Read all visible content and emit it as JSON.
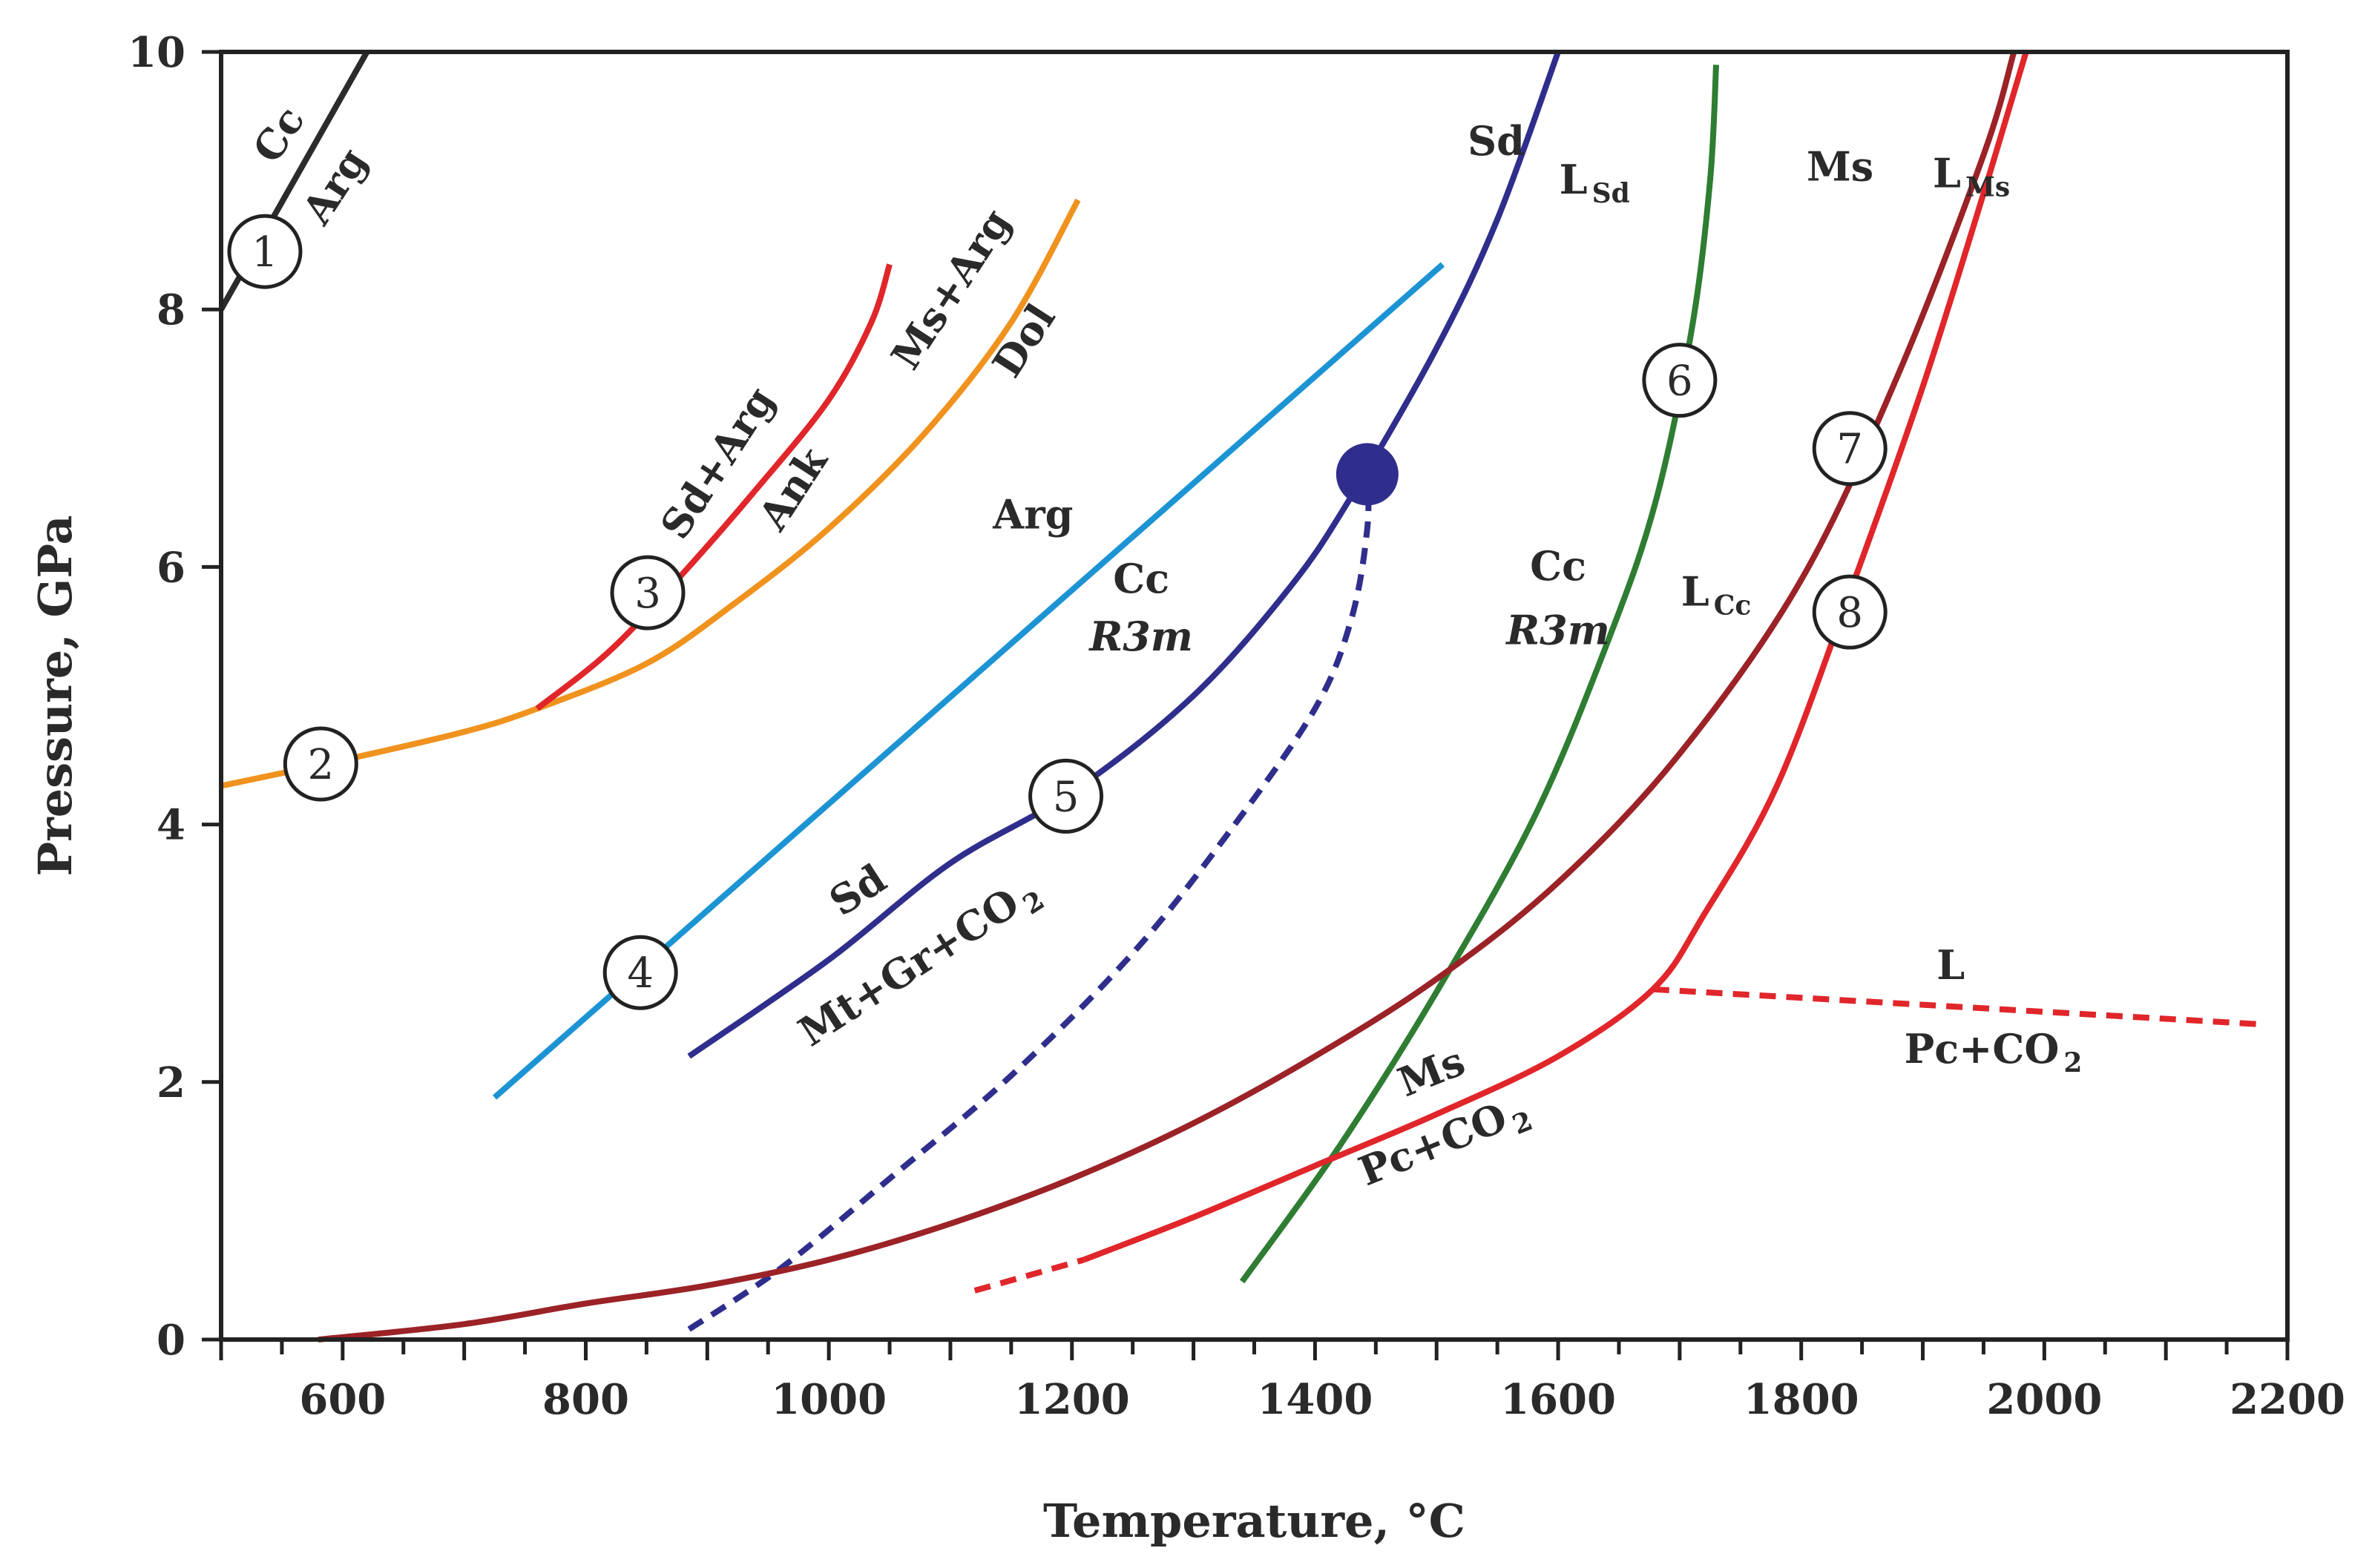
{
  "chart_data": {
    "type": "line",
    "title": "",
    "xlabel": "Temperature, °C",
    "ylabel": "Pressure, GPa",
    "xlim": [
      500,
      2200
    ],
    "ylim": [
      0,
      10
    ],
    "xticks": [
      600,
      800,
      1000,
      1200,
      1400,
      1600,
      1800,
      2000,
      2200
    ],
    "yticks": [
      0,
      2,
      4,
      6,
      8,
      10
    ],
    "minor_xtick_step": 50,
    "grid": false,
    "series": [
      {
        "id": "c1",
        "name": "Cc / Arg",
        "color": "#2b2b2b",
        "dashed": false,
        "points": [
          [
            500,
            8.0
          ],
          [
            620,
            10.0
          ]
        ]
      },
      {
        "id": "c2",
        "name": "Ms+Arg / Dol",
        "color": "#f0921e",
        "dashed": false,
        "points": [
          [
            500,
            4.3
          ],
          [
            600,
            4.5
          ],
          [
            700,
            4.72
          ],
          [
            760,
            4.9
          ],
          [
            850,
            5.25
          ],
          [
            920,
            5.7
          ],
          [
            1000,
            6.3
          ],
          [
            1080,
            7.05
          ],
          [
            1150,
            7.9
          ],
          [
            1205,
            8.85
          ]
        ]
      },
      {
        "id": "c3",
        "name": "Sd+Arg / Ank",
        "color": "#e0262a",
        "dashed": false,
        "points": [
          [
            760,
            4.9
          ],
          [
            820,
            5.35
          ],
          [
            880,
            5.95
          ],
          [
            940,
            6.6
          ],
          [
            1000,
            7.3
          ],
          [
            1035,
            7.9
          ],
          [
            1050,
            8.35
          ]
        ]
      },
      {
        "id": "c4",
        "name": "Arg / Cc R3m",
        "color": "#1c94d4",
        "dashed": false,
        "points": [
          [
            725,
            1.88
          ],
          [
            1505,
            8.35
          ]
        ]
      },
      {
        "id": "c5",
        "name": "Sd / Mt+Gr+CO2",
        "color": "#2f2e8c",
        "dashed": false,
        "points": [
          [
            885,
            2.2
          ],
          [
            1000,
            2.95
          ],
          [
            1100,
            3.7
          ],
          [
            1200,
            4.25
          ],
          [
            1300,
            5.0
          ],
          [
            1380,
            5.85
          ],
          [
            1430,
            6.55
          ],
          [
            1500,
            7.7
          ],
          [
            1550,
            8.7
          ],
          [
            1600,
            10.0
          ]
        ]
      },
      {
        "id": "c5b",
        "name": "Sd metastable",
        "color": "#2f2e8c",
        "dashed": true,
        "points": [
          [
            885,
            0.08
          ],
          [
            960,
            0.55
          ],
          [
            1050,
            1.25
          ],
          [
            1150,
            2.05
          ],
          [
            1250,
            3.0
          ],
          [
            1330,
            3.95
          ],
          [
            1400,
            4.9
          ],
          [
            1430,
            5.6
          ],
          [
            1443,
            6.3
          ],
          [
            1443,
            6.75
          ]
        ]
      },
      {
        "id": "c6",
        "name": "Cc R3m / L Cc",
        "color": "#2e7d32",
        "dashed": false,
        "points": [
          [
            1340,
            0.45
          ],
          [
            1420,
            1.5
          ],
          [
            1500,
            2.7
          ],
          [
            1580,
            4.05
          ],
          [
            1640,
            5.4
          ],
          [
            1680,
            6.5
          ],
          [
            1710,
            7.85
          ],
          [
            1725,
            9.0
          ],
          [
            1730,
            9.9
          ]
        ]
      },
      {
        "id": "c7",
        "name": "Ms / L Ms",
        "color": "#9b2226",
        "dashed": false,
        "points": [
          [
            580,
            0.0
          ],
          [
            700,
            0.12
          ],
          [
            800,
            0.28
          ],
          [
            900,
            0.42
          ],
          [
            1000,
            0.62
          ],
          [
            1100,
            0.9
          ],
          [
            1200,
            1.25
          ],
          [
            1300,
            1.68
          ],
          [
            1400,
            2.2
          ],
          [
            1500,
            2.8
          ],
          [
            1600,
            3.55
          ],
          [
            1700,
            4.55
          ],
          [
            1800,
            5.9
          ],
          [
            1880,
            7.5
          ],
          [
            1950,
            9.2
          ],
          [
            1975,
            10.0
          ]
        ]
      },
      {
        "id": "c8a",
        "name": "Ms / Pc+CO2 (dashed)",
        "color": "#e0262a",
        "dashed": true,
        "points": [
          [
            1120,
            0.38
          ],
          [
            1210,
            0.62
          ]
        ]
      },
      {
        "id": "c8",
        "name": "Ms / Pc+CO2",
        "color": "#e0262a",
        "dashed": false,
        "points": [
          [
            1210,
            0.62
          ],
          [
            1300,
            0.95
          ],
          [
            1400,
            1.35
          ],
          [
            1500,
            1.75
          ],
          [
            1600,
            2.2
          ],
          [
            1678,
            2.72
          ],
          [
            1720,
            3.3
          ],
          [
            1780,
            4.3
          ],
          [
            1840,
            5.8
          ],
          [
            1900,
            7.4
          ],
          [
            1950,
            8.9
          ],
          [
            1985,
            10.0
          ]
        ]
      },
      {
        "id": "c9",
        "name": "L / Pc+CO2",
        "color": "#e0262a",
        "dashed": true,
        "points": [
          [
            1678,
            2.72
          ],
          [
            1900,
            2.6
          ],
          [
            2175,
            2.45
          ]
        ]
      }
    ],
    "invariant_point": {
      "x": 1443,
      "y": 6.72,
      "color": "#2f2e8c"
    },
    "markers": [
      {
        "label": "1",
        "x": 536,
        "y": 8.45
      },
      {
        "label": "2",
        "x": 582,
        "y": 4.47
      },
      {
        "label": "3",
        "x": 851,
        "y": 5.8
      },
      {
        "label": "4",
        "x": 845,
        "y": 2.85
      },
      {
        "label": "5",
        "x": 1195,
        "y": 4.22
      },
      {
        "label": "6",
        "x": 1700,
        "y": 7.45
      },
      {
        "label": "7",
        "x": 1840,
        "y": 6.92
      },
      {
        "label": "8",
        "x": 1840,
        "y": 5.65
      }
    ],
    "annotations": [
      {
        "id": "cc1",
        "text": "Cc",
        "x": 557,
        "y": 9.3,
        "rotate": -57
      },
      {
        "id": "arg1",
        "text": "Arg",
        "x": 603,
        "y": 8.9,
        "rotate": -57
      },
      {
        "id": "sdarg",
        "text": "Sd+Arg",
        "x": 918,
        "y": 6.75,
        "rotate": -57
      },
      {
        "id": "ank",
        "text": "Ank",
        "x": 980,
        "y": 6.55,
        "rotate": -57
      },
      {
        "id": "msarg",
        "text": "Ms+Arg",
        "x": 1110,
        "y": 8.1,
        "rotate": -57
      },
      {
        "id": "dol",
        "text": "Dol",
        "x": 1170,
        "y": 7.7,
        "rotate": -57
      },
      {
        "id": "arg2",
        "text": "Arg",
        "x": 1168,
        "y": 6.3,
        "rotate": 0
      },
      {
        "id": "cc2",
        "text": "Cc",
        "x": 1257,
        "y": 5.8,
        "rotate": 0
      },
      {
        "id": "r3m1",
        "text": "R3m",
        "x": 1257,
        "y": 5.35,
        "rotate": 0,
        "italic": true
      },
      {
        "id": "sd1",
        "text": "Sd",
        "x": 1030,
        "y": 3.4,
        "rotate": -33
      },
      {
        "id": "mtgr",
        "text": "Mt+Gr+CO",
        "sub": "2",
        "x": 1080,
        "y": 2.85,
        "rotate": -33
      },
      {
        "id": "sd2",
        "text": "Sd",
        "x": 1549,
        "y": 9.2,
        "rotate": 0
      },
      {
        "id": "lsd",
        "text": "L",
        "sub": "Sd",
        "x": 1630,
        "y": 8.9,
        "rotate": 0
      },
      {
        "id": "cc3",
        "text": "Cc",
        "x": 1600,
        "y": 5.9,
        "rotate": 0
      },
      {
        "id": "r3m2",
        "text": "R3m",
        "x": 1600,
        "y": 5.4,
        "rotate": 0,
        "italic": true
      },
      {
        "id": "lcc",
        "text": "L",
        "sub": "Cc",
        "x": 1730,
        "y": 5.7,
        "rotate": 0
      },
      {
        "id": "ms1",
        "text": "Ms",
        "x": 1832,
        "y": 9.0,
        "rotate": 0
      },
      {
        "id": "lms",
        "text": "L",
        "sub": "Ms",
        "x": 1940,
        "y": 8.95,
        "rotate": 0
      },
      {
        "id": "ms2",
        "text": "Ms",
        "x": 1500,
        "y": 1.98,
        "rotate": -22
      },
      {
        "id": "pcco2a",
        "text": "Pc+CO",
        "sub": "2",
        "x": 1510,
        "y": 1.45,
        "rotate": -22
      },
      {
        "id": "l2",
        "text": "L",
        "x": 1923,
        "y": 2.8,
        "rotate": 0
      },
      {
        "id": "pcco2b",
        "text": "Pc+CO",
        "sub": "2",
        "x": 1958,
        "y": 2.15,
        "rotate": 0
      }
    ]
  }
}
